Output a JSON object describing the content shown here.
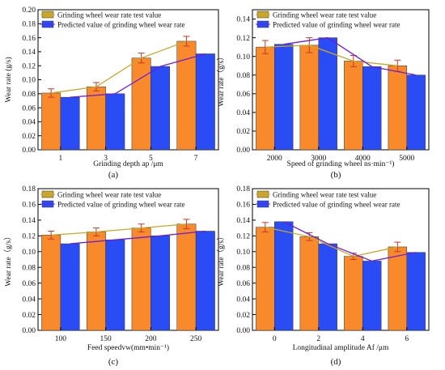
{
  "figure": {
    "colors": {
      "measured_bar": "#f98a2c",
      "measured_line": "#c9a72a",
      "predicted_bar": "#2a4cf5",
      "predicted_line": "#6a1fd8",
      "error_bar": "#c0392b"
    }
  },
  "chart_data": [
    {
      "type": "bar",
      "panel_label": "(a)",
      "categories": [
        "1",
        "3",
        "5",
        "7"
      ],
      "xlabel": "Grinding depth ap /μm",
      "ylabel": "Wear rate (g/s)",
      "ylim": [
        0,
        0.2
      ],
      "yticks": [
        "0.00",
        "0.02",
        "0.04",
        "0.06",
        "0.08",
        "0.10",
        "0.12",
        "0.14",
        "0.16",
        "0.18",
        "0.20"
      ],
      "legend_position": "top-left",
      "series": [
        {
          "name": "Grinding wheel wear rate test value",
          "values": [
            0.081,
            0.09,
            0.131,
            0.155
          ],
          "errors": [
            0.006,
            0.006,
            0.007,
            0.007
          ]
        },
        {
          "name": "Predicted value of grinding wheel wear rate",
          "values": [
            0.075,
            0.08,
            0.119,
            0.137
          ]
        }
      ]
    },
    {
      "type": "bar",
      "panel_label": "(b)",
      "categories": [
        "2000",
        "3000",
        "4000",
        "5000"
      ],
      "xlabel": "Speed of grinding wheel ns·min⁻¹)",
      "ylabel": "Wear rate（g/s）",
      "ylim": [
        0,
        0.15
      ],
      "yticks": [
        "0.00",
        "0.02",
        "0.04",
        "0.06",
        "0.08",
        "0.10",
        "0.12",
        "0.14"
      ],
      "legend_position": "top-right",
      "series": [
        {
          "name": "Grinding wheel wear rate test value",
          "values": [
            0.11,
            0.112,
            0.095,
            0.09
          ],
          "errors": [
            0.007,
            0.008,
            0.006,
            0.006
          ]
        },
        {
          "name": "Predicted value of grinding wheel wear rate",
          "values": [
            0.113,
            0.12,
            0.089,
            0.08
          ]
        }
      ]
    },
    {
      "type": "bar",
      "panel_label": "(c)",
      "categories": [
        "100",
        "150",
        "200",
        "250"
      ],
      "xlabel": "Feed speedvw(mm•min⁻¹)",
      "ylabel": "Wear rate（g/s）",
      "ylim": [
        0,
        0.18
      ],
      "yticks": [
        "0.00",
        "0.02",
        "0.04",
        "0.06",
        "0.08",
        "0.10",
        "0.12",
        "0.14",
        "0.16",
        "0.18"
      ],
      "legend_position": "top",
      "series": [
        {
          "name": "Grinding wheel wear rate test value",
          "values": [
            0.121,
            0.125,
            0.13,
            0.135
          ],
          "errors": [
            0.005,
            0.005,
            0.005,
            0.006
          ]
        },
        {
          "name": "Predicted value of grinding wheel wear rate",
          "values": [
            0.11,
            0.115,
            0.12,
            0.126
          ]
        }
      ]
    },
    {
      "type": "bar",
      "panel_label": "(d)",
      "categories": [
        "0",
        "2",
        "4",
        "6"
      ],
      "xlabel": "Longitudinal amplitude Af /μm",
      "ylabel": "Wear rate（g/s）",
      "ylim": [
        0,
        0.18
      ],
      "yticks": [
        "0.00",
        "0.02",
        "0.04",
        "0.06",
        "0.08",
        "0.10",
        "0.12",
        "0.14",
        "0.16",
        "0.18"
      ],
      "legend_position": "top-right",
      "series": [
        {
          "name": "Grinding wheel wear rate test value",
          "values": [
            0.131,
            0.119,
            0.094,
            0.106
          ],
          "errors": [
            0.006,
            0.005,
            0.004,
            0.006
          ]
        },
        {
          "name": "Predicted value of grinding wheel wear rate",
          "values": [
            0.138,
            0.11,
            0.088,
            0.099
          ]
        }
      ]
    }
  ]
}
